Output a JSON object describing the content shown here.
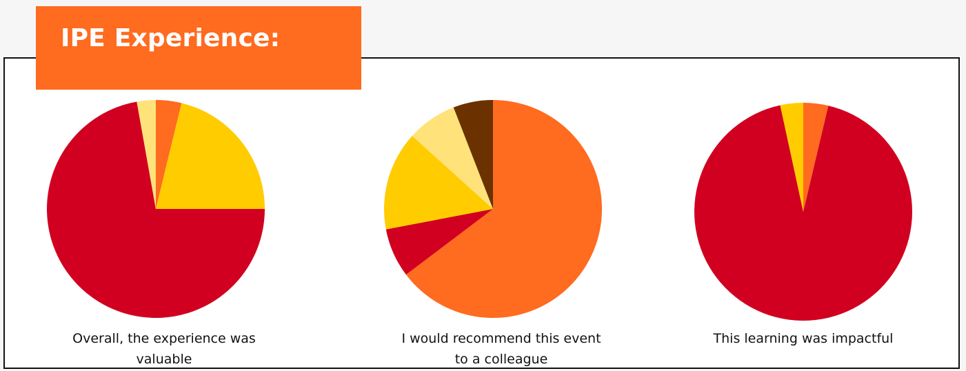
{
  "header": {
    "title": "IPE Experience:"
  },
  "colors": {
    "frame_border": "#111111",
    "banner_background": "#ff6b1f",
    "title_text": "#ffffff",
    "caption_text": "#111111"
  },
  "chart_data": [
    {
      "type": "pie",
      "caption_lines": [
        "Overall, the experience was",
        "valuable"
      ],
      "values": [
        {
          "value": 3.8,
          "color": "#ff6b1f"
        },
        {
          "value": 21.2,
          "color": "#ffcc00"
        },
        {
          "value": 72.2,
          "color": "#d10020"
        },
        {
          "value": 2.8,
          "color": "#ffe37a"
        }
      ]
    },
    {
      "type": "pie",
      "caption_lines": [
        "I would recommend this event",
        "to a colleague"
      ],
      "values": [
        {
          "value": 64.7,
          "color": "#ff6b1f"
        },
        {
          "value": 7.3,
          "color": "#d10020"
        },
        {
          "value": 14.7,
          "color": "#ffcc00"
        },
        {
          "value": 7.4,
          "color": "#ffe37a"
        },
        {
          "value": 5.9,
          "color": "#6b3200"
        }
      ]
    },
    {
      "type": "pie",
      "caption_lines": [
        "This learning was impactful"
      ],
      "values": [
        {
          "value": 3.7,
          "color": "#ff6b1f"
        },
        {
          "value": 92.9,
          "color": "#d10020"
        },
        {
          "value": 3.4,
          "color": "#ffcc00"
        }
      ]
    }
  ]
}
